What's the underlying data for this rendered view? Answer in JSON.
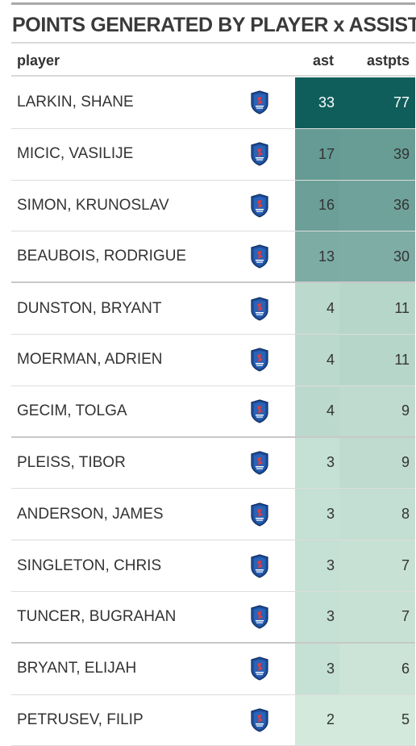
{
  "title": "POINTS GENERATED BY PLAYER x ASSISTS",
  "columns": {
    "player": "player",
    "ast": "ast",
    "astpts": "astpts"
  },
  "colors": {
    "max": "#0f5e5b",
    "min": "#d2e9dc",
    "text_dark": "#333333",
    "text_light": "#ffffff"
  },
  "logo_icon": "team-shield-icon",
  "rows": [
    {
      "player": "LARKIN, SHANE",
      "ast": "33",
      "astpts": "77"
    },
    {
      "player": "MICIC, VASILIJE",
      "ast": "17",
      "astpts": "39"
    },
    {
      "player": "SIMON, KRUNOSLAV",
      "ast": "16",
      "astpts": "36"
    },
    {
      "player": "BEAUBOIS, RODRIGUE",
      "ast": "13",
      "astpts": "30"
    },
    {
      "player": "DUNSTON, BRYANT",
      "ast": "4",
      "astpts": "11"
    },
    {
      "player": "MOERMAN, ADRIEN",
      "ast": "4",
      "astpts": "11"
    },
    {
      "player": "GECIM, TOLGA",
      "ast": "4",
      "astpts": "9"
    },
    {
      "player": "PLEISS, TIBOR",
      "ast": "3",
      "astpts": "9"
    },
    {
      "player": "ANDERSON, JAMES",
      "ast": "3",
      "astpts": "8"
    },
    {
      "player": "SINGLETON, CHRIS",
      "ast": "3",
      "astpts": "7"
    },
    {
      "player": "TUNCER, BUGRAHAN",
      "ast": "3",
      "astpts": "7"
    },
    {
      "player": "BRYANT, ELIJAH",
      "ast": "3",
      "astpts": "6"
    },
    {
      "player": "PETRUSEV, FILIP",
      "ast": "2",
      "astpts": "5"
    }
  ]
}
